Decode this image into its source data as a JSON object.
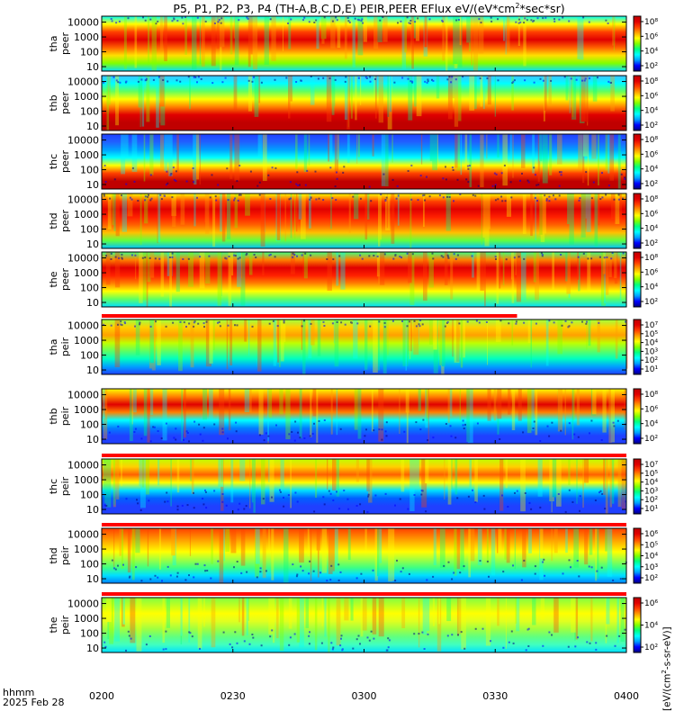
{
  "title": {
    "prefix": "P5, P1, P2, P3, P4 (TH-A,B,C,D,E) PEIR,PEER EFlux eV/(eV*cm",
    "sup": "2",
    "suffix": "*sec*sr)"
  },
  "x_axis": {
    "label": "hhmm",
    "date": "2025 Feb 28",
    "ticks": [
      "0200",
      "0230",
      "0300",
      "0330",
      "0400"
    ]
  },
  "colorbar_title": {
    "prefix": "[eV/(cm",
    "sup": "2",
    "suffix": "-s-sr-eV)]"
  },
  "colors": {
    "scale": [
      "#000080",
      "#0000ff",
      "#00a0ff",
      "#00ffff",
      "#00ff80",
      "#80ff00",
      "#ffff00",
      "#ffa000",
      "#ff4000",
      "#e00000",
      "#c00000"
    ]
  },
  "chart_data": [
    {
      "type": "heatmap",
      "ylabel": [
        "tha",
        "peer"
      ],
      "yticks": [
        "10000",
        "1000",
        "100",
        "10"
      ],
      "cbar_ticks": [
        "10⁸",
        "10⁶",
        "10⁴",
        "10²"
      ],
      "ylim": [
        5,
        25000
      ],
      "log_y": true,
      "has_red_bar": false
    },
    {
      "type": "heatmap",
      "ylabel": [
        "thb",
        "peer"
      ],
      "yticks": [
        "10000",
        "1000",
        "100",
        "10"
      ],
      "cbar_ticks": [
        "10⁸",
        "10⁶",
        "10⁴",
        "10²"
      ],
      "ylim": [
        5,
        25000
      ],
      "log_y": true,
      "has_red_bar": false
    },
    {
      "type": "heatmap",
      "ylabel": [
        "thc",
        "peer"
      ],
      "yticks": [
        "10000",
        "1000",
        "100",
        "10"
      ],
      "cbar_ticks": [
        "10⁸",
        "10⁶",
        "10⁴",
        "10²"
      ],
      "ylim": [
        5,
        25000
      ],
      "log_y": true,
      "has_red_bar": false
    },
    {
      "type": "heatmap",
      "ylabel": [
        "thd",
        "peer"
      ],
      "yticks": [
        "10000",
        "1000",
        "100",
        "10"
      ],
      "cbar_ticks": [
        "10⁸",
        "10⁶",
        "10⁴",
        "10²"
      ],
      "ylim": [
        5,
        25000
      ],
      "log_y": true,
      "has_red_bar": false
    },
    {
      "type": "heatmap",
      "ylabel": [
        "the",
        "peer"
      ],
      "yticks": [
        "10000",
        "1000",
        "100",
        "10"
      ],
      "cbar_ticks": [
        "10⁸",
        "10⁶",
        "10⁴",
        "10²"
      ],
      "ylim": [
        5,
        25000
      ],
      "log_y": true,
      "has_red_bar": false
    },
    {
      "type": "heatmap",
      "ylabel": [
        "tha",
        "peir"
      ],
      "yticks": [
        "10000",
        "1000",
        "100",
        "10"
      ],
      "cbar_ticks": [
        "10⁷",
        "10⁵",
        "10⁴",
        "10³",
        "10²",
        "10¹"
      ],
      "ylim": [
        5,
        25000
      ],
      "log_y": true,
      "has_red_bar": true,
      "red_bar_end_hhmm": "0335"
    },
    {
      "type": "heatmap",
      "ylabel": [
        "thb",
        "peir"
      ],
      "yticks": [
        "10000",
        "1000",
        "100",
        "10"
      ],
      "cbar_ticks": [
        "10⁸",
        "10⁶",
        "10⁴",
        "10²"
      ],
      "ylim": [
        5,
        25000
      ],
      "log_y": true,
      "has_red_bar": false
    },
    {
      "type": "heatmap",
      "ylabel": [
        "thc",
        "peir"
      ],
      "yticks": [
        "10000",
        "1000",
        "100",
        "10"
      ],
      "cbar_ticks": [
        "10⁷",
        "10⁵",
        "10⁴",
        "10³",
        "10²",
        "10¹"
      ],
      "ylim": [
        5,
        25000
      ],
      "log_y": true,
      "has_red_bar": true,
      "red_bar_end_hhmm": "0400"
    },
    {
      "type": "heatmap",
      "ylabel": [
        "thd",
        "peir"
      ],
      "yticks": [
        "10000",
        "1000",
        "100",
        "10"
      ],
      "cbar_ticks": [
        "10⁶",
        "10⁵",
        "10⁴",
        "10³",
        "10²"
      ],
      "ylim": [
        5,
        25000
      ],
      "log_y": true,
      "has_red_bar": true,
      "red_bar_end_hhmm": "0400"
    },
    {
      "type": "heatmap",
      "ylabel": [
        "the",
        "peir"
      ],
      "yticks": [
        "10000",
        "1000",
        "100",
        "10"
      ],
      "cbar_ticks": [
        "10⁶",
        "10⁴",
        "10²"
      ],
      "ylim": [
        5,
        25000
      ],
      "log_y": true,
      "has_red_bar": true,
      "red_bar_end_hhmm": "0400"
    }
  ]
}
